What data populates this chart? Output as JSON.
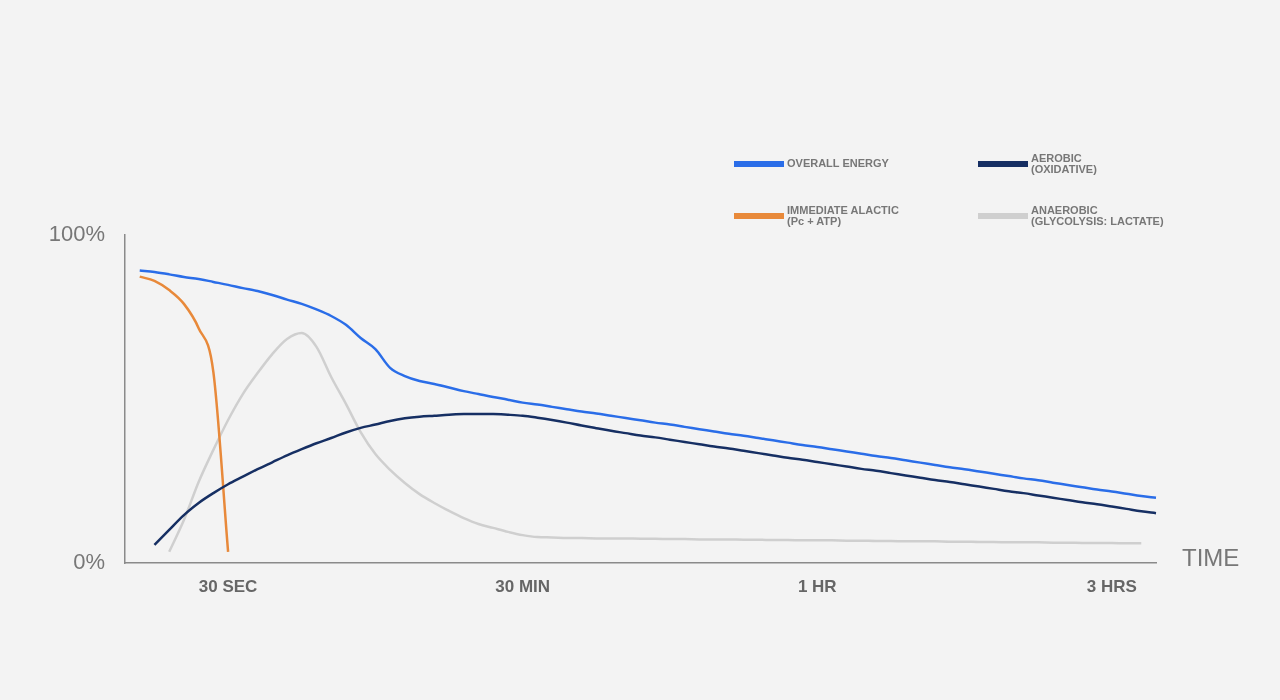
{
  "chart_data": {
    "type": "line",
    "xlabel": "TIME",
    "categories": [
      null,
      null,
      null,
      null,
      null,
      null,
      null,
      "30 SEC",
      null,
      null,
      null,
      null,
      null,
      null,
      null,
      null,
      null,
      null,
      null,
      null,
      null,
      null,
      null,
      null,
      null,
      null,
      null,
      "30 MIN",
      null,
      null,
      null,
      null,
      null,
      null,
      null,
      null,
      null,
      null,
      null,
      null,
      null,
      null,
      null,
      null,
      null,
      null,
      null,
      "1 HR",
      null,
      null,
      null,
      null,
      null,
      null,
      null,
      null,
      null,
      null,
      null,
      null,
      null,
      null,
      null,
      null,
      null,
      null,
      null,
      "3 HRS",
      null,
      null,
      null
    ],
    "ylim": [
      0,
      100
    ],
    "yticks": [
      {
        "value": 0,
        "label": "0%"
      },
      {
        "value": 100,
        "label": "100%"
      }
    ],
    "grid": false,
    "legend": "top right",
    "series": [
      {
        "name": "OVERALL ENERGY",
        "color": "#2a6de8",
        "values": [
          null,
          89.2,
          88.7,
          88.0,
          87.2,
          86.6,
          85.7,
          84.8,
          83.8,
          82.9,
          81.7,
          80.3,
          79.0,
          77.3,
          75.3,
          72.6,
          68.6,
          65.2,
          59.5,
          57.0,
          55.5,
          54.6,
          53.5,
          52.4,
          51.5,
          50.6,
          49.8,
          48.9,
          48.3,
          47.6,
          46.9,
          46.2,
          45.6,
          44.9,
          44.2,
          43.5,
          42.8,
          42.2,
          41.5,
          40.8,
          40.1,
          39.4,
          38.8,
          38.1,
          37.4,
          36.7,
          36.0,
          35.4,
          34.7,
          34.0,
          33.3,
          32.6,
          32.0,
          31.3,
          30.6,
          29.9,
          29.2,
          28.6,
          27.9,
          27.2,
          26.5,
          25.8,
          25.2,
          24.5,
          23.8,
          23.1,
          22.4,
          21.8,
          21.1,
          20.4,
          19.9
        ]
      },
      {
        "name": "AEROBIC\n(OXIDATIVE)",
        "color": "#162f63",
        "values": [
          null,
          null,
          5.5,
          10.1,
          14.6,
          18.3,
          21.3,
          24.0,
          26.3,
          28.6,
          30.7,
          32.8,
          34.7,
          36.5,
          38.1,
          39.8,
          41.2,
          42.2,
          43.3,
          44.1,
          44.6,
          44.9,
          45.2,
          45.4,
          45.4,
          45.4,
          45.2,
          44.9,
          44.3,
          43.6,
          42.8,
          41.9,
          41.1,
          40.3,
          39.6,
          38.9,
          38.3,
          37.6,
          36.9,
          36.2,
          35.5,
          34.9,
          34.2,
          33.5,
          32.8,
          32.1,
          31.5,
          30.8,
          30.1,
          29.4,
          28.7,
          28.1,
          27.4,
          26.7,
          26.0,
          25.3,
          24.7,
          24.0,
          23.3,
          22.6,
          21.9,
          21.3,
          20.6,
          19.9,
          19.2,
          18.5,
          17.9,
          17.2,
          16.5,
          15.8,
          15.2
        ]
      },
      {
        "name": "IMMEDIATE ALACTIC\n(Pc + ATP)",
        "color": "#e8893a",
        "values": [
          null,
          87.3,
          86.0,
          83.2,
          79.0,
          71.6,
          58.2,
          3.4,
          null,
          null,
          null,
          null,
          null,
          null,
          null,
          null,
          null,
          null,
          null,
          null,
          null,
          null,
          null,
          null,
          null,
          null,
          null,
          null,
          null,
          null,
          null,
          null,
          null,
          null,
          null,
          null,
          null,
          null,
          null,
          null,
          null,
          null,
          null,
          null,
          null,
          null,
          null,
          null,
          null,
          null,
          null,
          null,
          null,
          null,
          null,
          null,
          null,
          null,
          null,
          null,
          null,
          null,
          null,
          null,
          null,
          null,
          null,
          null,
          null,
          null,
          null
        ]
      },
      {
        "name": "ANAEROBIC\n(GLYCOLYSIS: LACTATE)",
        "color": "#cfcfcf",
        "values": [
          null,
          null,
          null,
          3.4,
          13.1,
          24.7,
          34.5,
          43.6,
          51.5,
          57.9,
          63.7,
          68.3,
          70.1,
          65.9,
          56.7,
          48.5,
          39.9,
          33.2,
          28.4,
          24.4,
          21.0,
          18.3,
          15.9,
          13.7,
          11.9,
          10.7,
          9.5,
          8.5,
          7.9,
          7.8,
          7.6,
          7.6,
          7.5,
          7.5,
          7.5,
          7.4,
          7.4,
          7.3,
          7.3,
          7.2,
          7.2,
          7.2,
          7.1,
          7.1,
          7.0,
          7.0,
          6.9,
          6.9,
          6.9,
          6.8,
          6.8,
          6.7,
          6.7,
          6.6,
          6.6,
          6.6,
          6.5,
          6.5,
          6.4,
          6.4,
          6.3,
          6.3,
          6.3,
          6.2,
          6.2,
          6.1,
          6.1,
          6.1,
          6.0,
          6.0,
          null
        ]
      }
    ]
  }
}
